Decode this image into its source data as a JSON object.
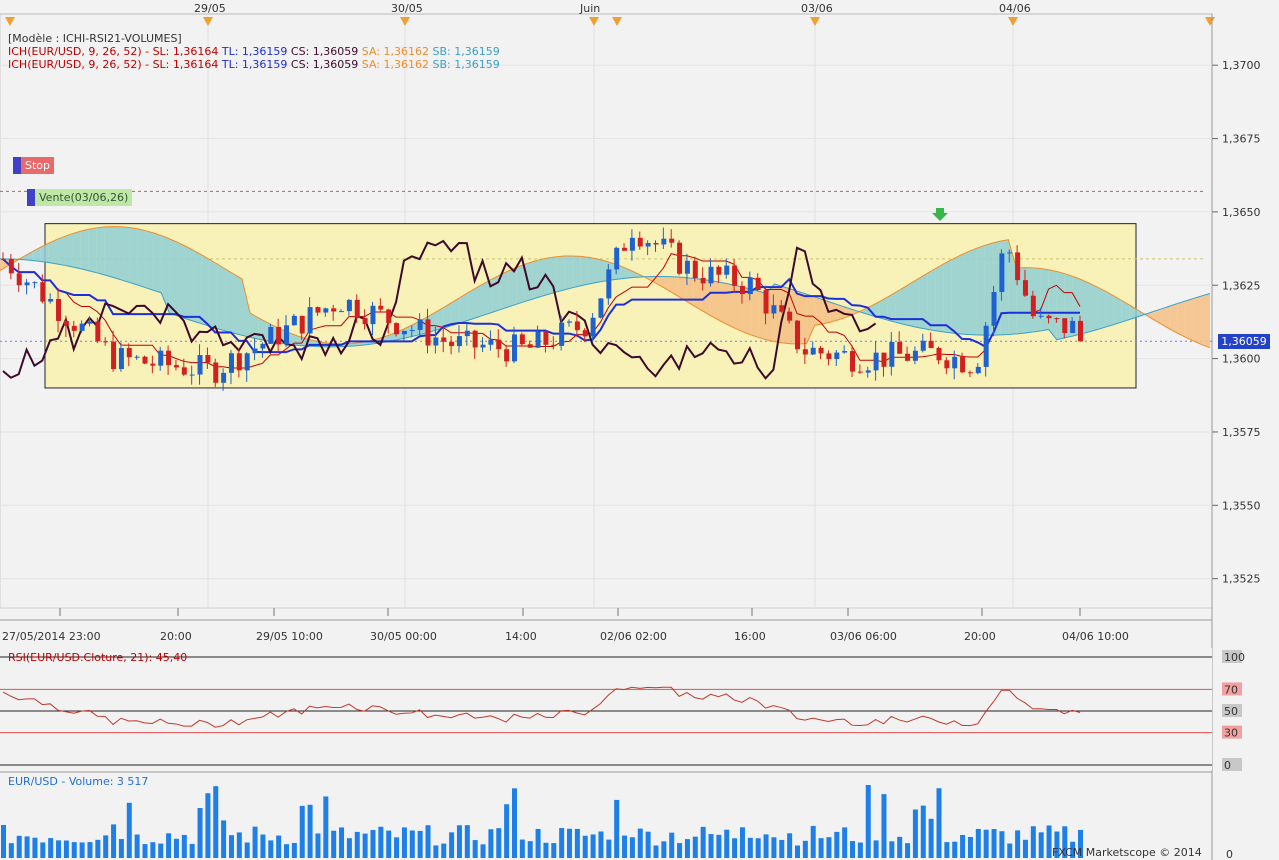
{
  "top_dates": [
    "29/05",
    "30/05",
    "Juin",
    "03/06",
    "04/06"
  ],
  "legend": {
    "model": "[Modèle : ICHI-RSI21-VOLUMES]",
    "lines": [
      {
        "main": "ICH(EUR/USD, 9, 26, 52) -  SL: 1,36164",
        "tl": "TL: 1,36159",
        "cs": "CS: 1,36059",
        "sa": "SA: 1,36162",
        "sb": "SB: 1,36159"
      },
      {
        "main": "ICH(EUR/USD, 9, 26, 52) -  SL: 1,36164",
        "tl": "TL: 1,36159",
        "cs": "CS: 1,36059",
        "sa": "SA: 1,36162",
        "sb": "SB: 1,36159"
      }
    ]
  },
  "orders": {
    "stop_label": "Stop",
    "vente_label": "Vente(03/06,26)"
  },
  "price_axis": {
    "ticks": [
      "1,3700",
      "1,3675",
      "1,3650",
      "1,3625",
      "1,3600",
      "1,3575",
      "1,3550",
      "1,3525"
    ],
    "current_price": "1,36059"
  },
  "time_axis": [
    "27/05/2014 23:00",
    "20:00",
    "29/05 10:00",
    "30/05 00:00",
    "14:00",
    "02/06 02:00",
    "16:00",
    "03/06 06:00",
    "20:00",
    "04/06 10:00"
  ],
  "rsi_panel": {
    "title": "RSI(EUR/USD.Cloture, 21): 45,40",
    "levels": [
      "100",
      "70",
      "50",
      "30",
      "0"
    ]
  },
  "volume_panel": {
    "title": "EUR/USD - Volume: 3 517",
    "axis_zero": "0"
  },
  "watermark": "FXCM Marketscope © 2014",
  "colors": {
    "bg": "#f2f2f2",
    "up": "#1e62d0",
    "down": "#d21f1f",
    "tenkan": "#c00000",
    "kijun": "#1d2fd6",
    "chikou": "#3d0a2c",
    "cloud_up": "#8fcfd3",
    "cloud_down": "#f5bf85",
    "box": "#f8f2b8",
    "volume": "#1f7fe8"
  },
  "chart_data": {
    "type": "candlestick",
    "instrument": "EUR/USD",
    "price_range": [
      1.3515,
      1.3712
    ],
    "last_price": 1.36059,
    "ichimoku": {
      "SL": 1.36164,
      "TL": 1.36159,
      "CS": 1.36059,
      "SA": 1.36162,
      "SB": 1.36159
    },
    "rsi_last": 45.4,
    "volume_last": 3517
  }
}
